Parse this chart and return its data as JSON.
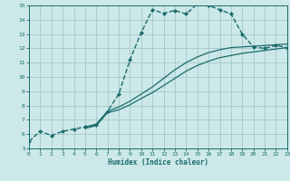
{
  "xlabel": "Humidex (Indice chaleur)",
  "bg_color": "#cce8e8",
  "grid_color": "#aacccc",
  "line_color": "#1a6b6b",
  "xlim": [
    0,
    23
  ],
  "ylim": [
    5,
    15
  ],
  "xticks": [
    0,
    1,
    2,
    3,
    4,
    5,
    6,
    7,
    8,
    9,
    10,
    11,
    12,
    13,
    14,
    15,
    16,
    17,
    18,
    19,
    20,
    21,
    22,
    23
  ],
  "yticks": [
    5,
    6,
    7,
    8,
    9,
    10,
    11,
    12,
    13,
    14,
    15
  ],
  "series": [
    {
      "x": [
        0,
        1,
        2,
        3,
        4,
        5,
        6,
        7,
        8,
        9,
        10,
        11,
        12,
        13,
        14,
        15,
        16,
        17,
        18,
        19,
        20,
        21,
        22,
        23
      ],
      "y": [
        5.5,
        6.2,
        5.9,
        6.2,
        6.35,
        6.5,
        6.65,
        7.6,
        8.8,
        11.2,
        13.1,
        14.7,
        14.45,
        14.65,
        14.4,
        15.1,
        15.0,
        14.7,
        14.4,
        13.0,
        12.1,
        12.0,
        12.2,
        12.05
      ],
      "markersize": 2.2,
      "linewidth": 1.0
    },
    {
      "x": [
        5,
        6,
        7,
        8,
        9,
        10,
        11,
        12,
        13,
        14,
        15,
        16,
        17,
        18,
        19,
        20,
        21,
        22,
        23
      ],
      "y": [
        6.5,
        6.7,
        7.6,
        7.9,
        8.3,
        8.8,
        9.3,
        9.9,
        10.5,
        11.0,
        11.4,
        11.7,
        11.9,
        12.05,
        12.1,
        12.15,
        12.2,
        12.25,
        12.3
      ],
      "markersize": 0,
      "linewidth": 0.9
    },
    {
      "x": [
        5,
        6,
        7,
        8,
        9,
        10,
        11,
        12,
        13,
        14,
        15,
        16,
        17,
        18,
        19,
        20,
        21,
        22,
        23
      ],
      "y": [
        6.4,
        6.6,
        7.5,
        7.7,
        8.05,
        8.5,
        8.9,
        9.4,
        9.9,
        10.4,
        10.8,
        11.1,
        11.35,
        11.5,
        11.65,
        11.75,
        11.85,
        11.95,
        12.05
      ],
      "markersize": 0,
      "linewidth": 0.9
    }
  ]
}
